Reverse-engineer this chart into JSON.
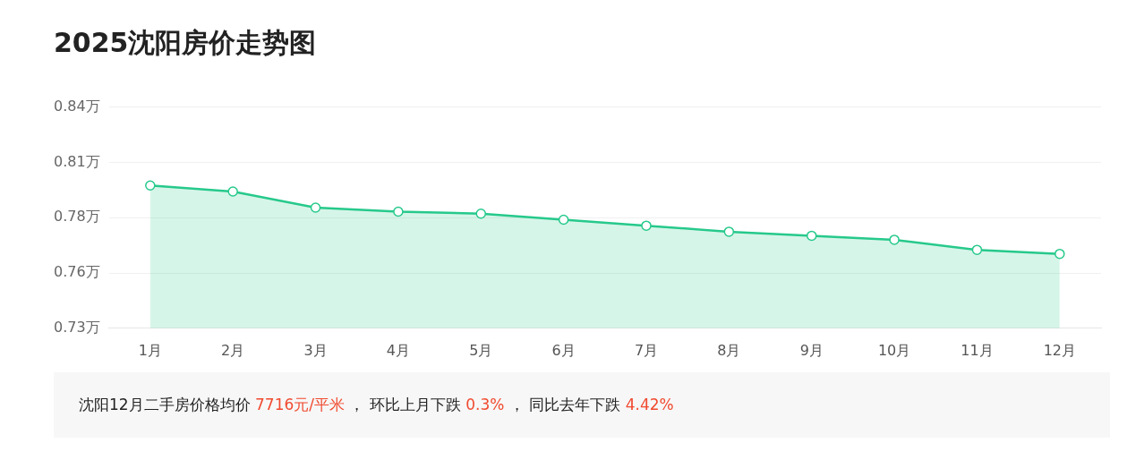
{
  "chart_data": {
    "type": "area",
    "title": "2025沈阳房价走势图",
    "categories": [
      "1月",
      "2月",
      "3月",
      "4月",
      "5月",
      "6月",
      "7月",
      "8月",
      "9月",
      "10月",
      "11月",
      "12月"
    ],
    "series": [
      {
        "color": "#26c98b",
        "values": [
          0.801,
          0.798,
          0.79,
          0.788,
          0.787,
          0.784,
          0.781,
          0.778,
          0.776,
          0.774,
          0.769,
          0.767
        ]
      }
    ],
    "ylim": [
      0.73,
      0.84
    ],
    "yticks": [
      {
        "value": 0.73,
        "label": "0.73万"
      },
      {
        "value": 0.7575,
        "label": "0.76万"
      },
      {
        "value": 0.785,
        "label": "0.78万"
      },
      {
        "value": 0.8125,
        "label": "0.81万"
      },
      {
        "value": 0.84,
        "label": "0.84万"
      }
    ],
    "grid": "y",
    "marker": "circle",
    "annotations": [
      "沈阳12月二手房价格均价 7716元/平米 ， 环比上月下跌 0.3% ， 同比去年下跌 4.42%"
    ]
  }
}
